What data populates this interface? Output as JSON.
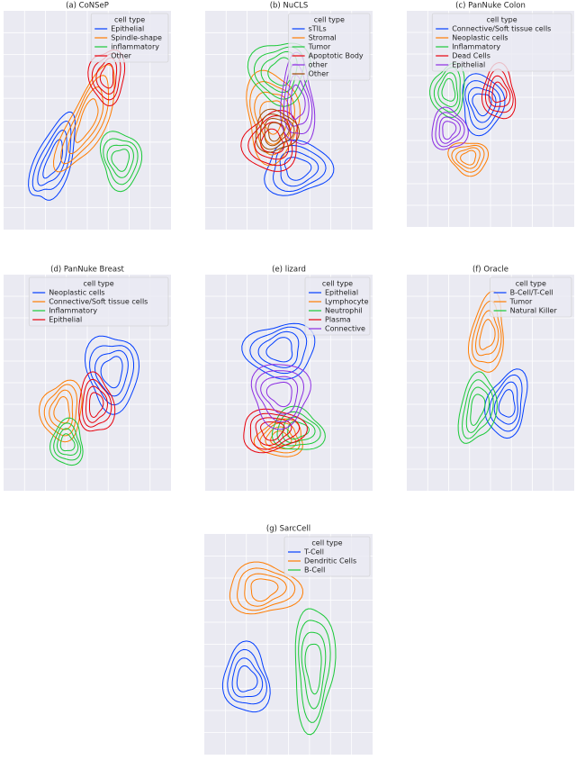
{
  "chart_data": [
    {
      "type": "kde",
      "title": "(a) CoNSeP",
      "legend_title": "cell type",
      "series": [
        {
          "name": "Epithelial",
          "color": "#023eff"
        },
        {
          "name": "Spindle-shape",
          "color": "#ff7c00"
        },
        {
          "name": "inflammatory",
          "color": "#1ac938"
        },
        {
          "name": "Other",
          "color": "#e8000b"
        }
      ]
    },
    {
      "type": "kde",
      "title": "(b) NuCLS",
      "legend_title": "cell type",
      "series": [
        {
          "name": "sTILs",
          "color": "#023eff"
        },
        {
          "name": "Stromal",
          "color": "#ff7c00"
        },
        {
          "name": "Tumor",
          "color": "#1ac938"
        },
        {
          "name": "Apoptotic Body",
          "color": "#e8000b"
        },
        {
          "name": "other",
          "color": "#8b2be2"
        },
        {
          "name": "Other",
          "color": "#9f4800"
        }
      ]
    },
    {
      "type": "kde",
      "title": "(c) PanNuke Colon",
      "legend_title": "cell type",
      "series": [
        {
          "name": "Connective/Soft tissue cells",
          "color": "#023eff"
        },
        {
          "name": "Neoplastic cells",
          "color": "#ff7c00"
        },
        {
          "name": "Inflammatory",
          "color": "#1ac938"
        },
        {
          "name": "Dead Cells",
          "color": "#e8000b"
        },
        {
          "name": "Epithelial",
          "color": "#8b2be2"
        }
      ]
    },
    {
      "type": "kde",
      "title": "(d) PanNuke Breast",
      "legend_title": "cell type",
      "series": [
        {
          "name": "Neoplastic cells",
          "color": "#023eff"
        },
        {
          "name": "Connective/Soft tissue cells",
          "color": "#ff7c00"
        },
        {
          "name": "Inflammatory",
          "color": "#1ac938"
        },
        {
          "name": "Epithelial",
          "color": "#e8000b"
        }
      ]
    },
    {
      "type": "kde",
      "title": "(e) lizard",
      "legend_title": "cell type",
      "series": [
        {
          "name": "Epithelial",
          "color": "#023eff"
        },
        {
          "name": "Lymphocyte",
          "color": "#ff7c00"
        },
        {
          "name": "Neutrophil",
          "color": "#1ac938"
        },
        {
          "name": "Plasma",
          "color": "#e8000b"
        },
        {
          "name": "Connective",
          "color": "#8b2be2"
        }
      ]
    },
    {
      "type": "kde",
      "title": "(f) Oracle",
      "legend_title": "cell type",
      "series": [
        {
          "name": "B-Cell/T-Cell",
          "color": "#023eff"
        },
        {
          "name": "Tumor",
          "color": "#ff7c00"
        },
        {
          "name": "Natural Killer",
          "color": "#1ac938"
        }
      ]
    },
    {
      "type": "kde",
      "title": "(g) SarcCell",
      "legend_title": "cell type",
      "series": [
        {
          "name": "T-Cell",
          "color": "#023eff"
        },
        {
          "name": "Dendritic Cells",
          "color": "#ff7c00"
        },
        {
          "name": "B-Cell",
          "color": "#1ac938"
        }
      ]
    }
  ]
}
